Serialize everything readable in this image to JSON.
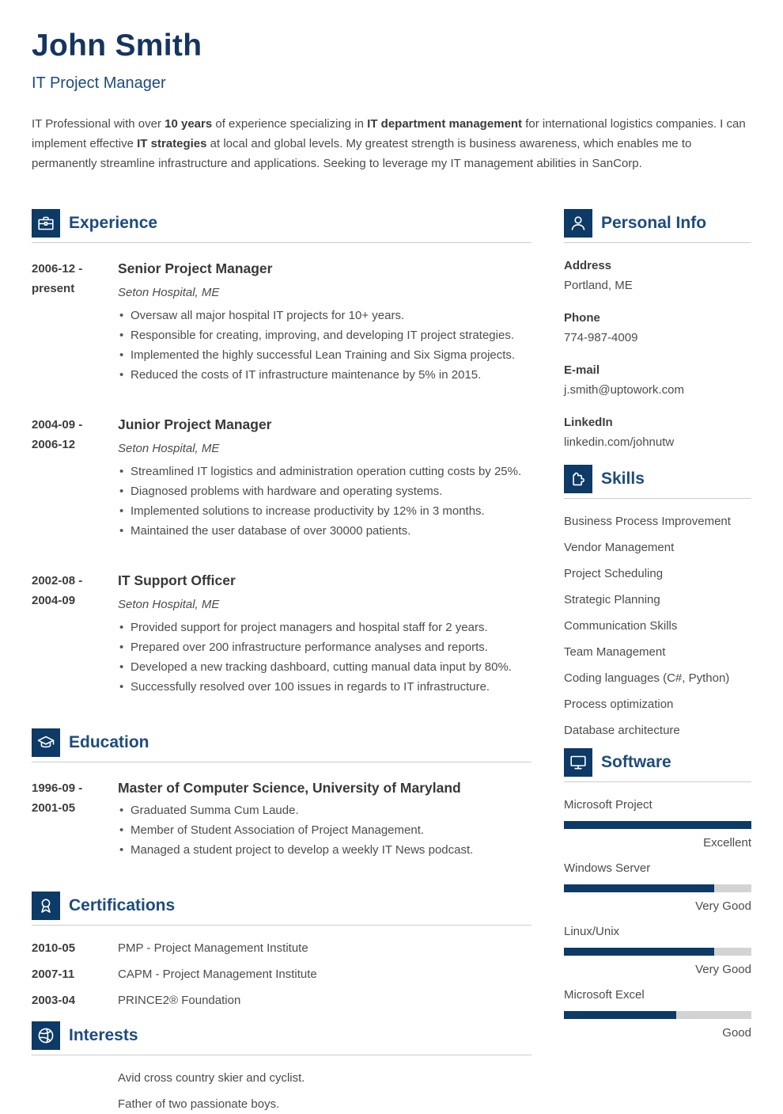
{
  "header": {
    "name": "John Smith",
    "job_title": "IT Project Manager",
    "summary": [
      {
        "text": "IT Professional with over ",
        "bold": false
      },
      {
        "text": "10 years",
        "bold": true
      },
      {
        "text": " of experience specializing in ",
        "bold": false
      },
      {
        "text": "IT department management",
        "bold": true
      },
      {
        "text": " for international logistics companies. I can implement effective ",
        "bold": false
      },
      {
        "text": "IT strategies",
        "bold": true
      },
      {
        "text": " at local and global levels. My greatest strength is business awareness, which enables me to permanently streamline infrastructure and applications. Seeking to leverage my IT management abilities in SanCorp.",
        "bold": false
      }
    ]
  },
  "sections": {
    "experience": {
      "title": "Experience",
      "icon": "briefcase-icon",
      "entries": [
        {
          "date_from": "2006-12 -",
          "date_to": "present",
          "role": "Senior Project Manager",
          "company": "Seton Hospital, ME",
          "bullets": [
            "Oversaw all major hospital IT projects for 10+ years.",
            "Responsible for creating, improving, and developing IT project strategies.",
            "Implemented the highly successful Lean Training and Six Sigma projects.",
            "Reduced the costs of IT infrastructure maintenance by 5% in 2015."
          ]
        },
        {
          "date_from": "2004-09 -",
          "date_to": "2006-12",
          "role": "Junior Project Manager",
          "company": "Seton Hospital, ME",
          "bullets": [
            "Streamlined IT logistics and administration operation cutting costs by 25%.",
            "Diagnosed problems with hardware and operating systems.",
            "Implemented solutions to increase productivity by 12% in 3 months.",
            "Maintained the user database of over 30000 patients."
          ]
        },
        {
          "date_from": "2002-08 -",
          "date_to": "2004-09",
          "role": "IT Support Officer",
          "company": "Seton Hospital, ME",
          "bullets": [
            "Provided support for project managers and hospital staff for 2 years.",
            "Prepared over 200 infrastructure performance analyses and reports.",
            "Developed a new tracking dashboard, cutting manual data input by 80%.",
            "Successfully resolved over 100 issues in regards to IT infrastructure."
          ]
        }
      ]
    },
    "education": {
      "title": "Education",
      "icon": "graduation-cap-icon",
      "entries": [
        {
          "date_from": "1996-09 -",
          "date_to": "2001-05",
          "role": "Master of Computer Science, University of Maryland",
          "company": "",
          "bullets": [
            "Graduated Summa Cum Laude.",
            "Member of Student Association of Project Management.",
            "Managed a student project to develop a weekly IT News podcast."
          ]
        }
      ]
    },
    "certifications": {
      "title": "Certifications",
      "icon": "award-ribbon-icon",
      "rows": [
        {
          "date": "2010-05",
          "label": "PMP - Project Management Institute"
        },
        {
          "date": "2007-11",
          "label": "CAPM - Project Management Institute"
        },
        {
          "date": "2003-04",
          "label": "PRINCE2® Foundation"
        }
      ]
    },
    "interests": {
      "title": "Interests",
      "icon": "ball-icon",
      "items": [
        "Avid cross country skier and cyclist.",
        "Father of two passionate boys."
      ]
    },
    "personal_info": {
      "title": "Personal Info",
      "icon": "person-icon",
      "fields": [
        {
          "label": "Address",
          "value": "Portland, ME"
        },
        {
          "label": "Phone",
          "value": "774-987-4009"
        },
        {
          "label": "E-mail",
          "value": "j.smith@uptowork.com"
        },
        {
          "label": "LinkedIn",
          "value": "linkedin.com/johnutw"
        }
      ]
    },
    "skills": {
      "title": "Skills",
      "icon": "puzzle-icon",
      "items": [
        "Business Process Improvement",
        "Vendor Management",
        "Project Scheduling",
        "Strategic Planning",
        "Communication Skills",
        "Team Management",
        "Coding languages (C#, Python)",
        "Process optimization",
        "Database architecture"
      ]
    },
    "software": {
      "title": "Software",
      "icon": "monitor-icon",
      "items": [
        {
          "name": "Microsoft Project",
          "level": "Excellent",
          "percent": 100
        },
        {
          "name": "Windows Server",
          "level": "Very Good",
          "percent": 80
        },
        {
          "name": "Linux/Unix",
          "level": "Very Good",
          "percent": 80
        },
        {
          "name": "Microsoft Excel",
          "level": "Good",
          "percent": 60
        }
      ]
    }
  },
  "colors": {
    "navy_accent": "#0d3a66",
    "heading_text": "#1d4b7d",
    "name_text": "#15355e",
    "body_text": "#4a4a4a",
    "bar_track": "#d3d3d3",
    "rule_line": "#cdcdcd"
  }
}
